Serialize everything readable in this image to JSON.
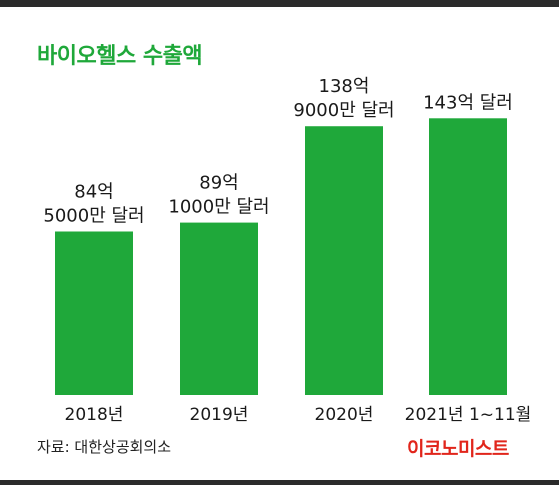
{
  "chart_data": {
    "type": "bar",
    "title": "바이오헬스 수출액",
    "categories": [
      "2018년",
      "2019년",
      "2020년",
      "2021년 1~11월"
    ],
    "values": [
      84.5,
      89.1,
      138.9,
      143
    ],
    "value_labels": [
      [
        "84억",
        "5000만 달러"
      ],
      [
        "89억",
        "1000만 달러"
      ],
      [
        "138억",
        "9000만 달러"
      ],
      [
        "143억 달러"
      ]
    ],
    "unit": "억 달러",
    "ylim": [
      0,
      200
    ],
    "grid": false,
    "bar_color": "#1fa83a"
  },
  "source": "자료: 대한상공회의소",
  "logo_text": "이코노미스트",
  "colors": {
    "accent": "#1fa83a",
    "logo": "#e1251b",
    "frame": "#2b2b2b"
  }
}
